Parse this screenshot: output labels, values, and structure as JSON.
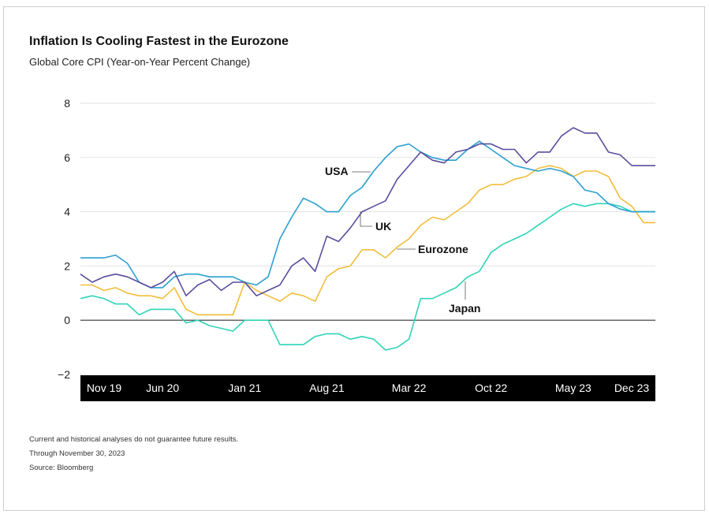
{
  "page": {
    "title": "Inflation Is Cooling Fastest in the Eurozone",
    "subtitle": "Global Core CPI (Year-on-Year Percent Change)",
    "notes": [
      "Current and historical analyses do not guarantee future results.",
      "Through November 30, 2023",
      "Source: Bloomberg"
    ]
  },
  "chart_data": {
    "type": "line",
    "title": "Inflation Is Cooling Fastest in the Eurozone",
    "subtitle": "Global Core CPI (Year-on-Year Percent Change)",
    "ylim": [
      -2,
      8
    ],
    "y_ticks": [
      "−2",
      "0",
      "2",
      "4",
      "6",
      "8"
    ],
    "y_tick_values": [
      -2,
      0,
      2,
      4,
      6,
      8
    ],
    "x_tick_labels": [
      "Nov 19",
      "Jun 20",
      "Jan 21",
      "Aug 21",
      "Mar 22",
      "Oct 22",
      "May 23",
      "Dec 23"
    ],
    "x_tick_dates": [
      "2019-11",
      "2020-06",
      "2021-01",
      "2021-08",
      "2022-03",
      "2022-10",
      "2023-05",
      "2023-12"
    ],
    "x": [
      "2019-11",
      "2019-12",
      "2020-01",
      "2020-02",
      "2020-03",
      "2020-04",
      "2020-05",
      "2020-06",
      "2020-07",
      "2020-08",
      "2020-09",
      "2020-10",
      "2020-11",
      "2020-12",
      "2021-01",
      "2021-02",
      "2021-03",
      "2021-04",
      "2021-05",
      "2021-06",
      "2021-07",
      "2021-08",
      "2021-09",
      "2021-10",
      "2021-11",
      "2021-12",
      "2022-01",
      "2022-02",
      "2022-03",
      "2022-04",
      "2022-05",
      "2022-06",
      "2022-07",
      "2022-08",
      "2022-09",
      "2022-10",
      "2022-11",
      "2022-12",
      "2023-01",
      "2023-02",
      "2023-03",
      "2023-04",
      "2023-05",
      "2023-06",
      "2023-07",
      "2023-08",
      "2023-09",
      "2023-10",
      "2023-11",
      "2023-12"
    ],
    "grid": true,
    "zero_line": true,
    "x_axis_band_color": "#000000",
    "series": [
      {
        "name": "USA",
        "color": "#2a9fd0",
        "label_at": "2021-06",
        "values": [
          2.3,
          2.3,
          2.3,
          2.4,
          2.1,
          1.4,
          1.2,
          1.2,
          1.6,
          1.7,
          1.7,
          1.6,
          1.6,
          1.6,
          1.4,
          1.3,
          1.6,
          3.0,
          3.8,
          4.5,
          4.3,
          4.0,
          4.0,
          4.6,
          4.9,
          5.5,
          6.0,
          6.4,
          6.5,
          6.2,
          6.0,
          5.9,
          5.9,
          6.3,
          6.6,
          6.3,
          6.0,
          5.7,
          5.6,
          5.5,
          5.6,
          5.5,
          5.3,
          4.8,
          4.7,
          4.3,
          4.1,
          4.0,
          4.0,
          4.0
        ]
      },
      {
        "name": "UK",
        "color": "#5b4c9e",
        "label_at": "2021-10",
        "values": [
          1.7,
          1.4,
          1.6,
          1.7,
          1.6,
          1.4,
          1.2,
          1.4,
          1.8,
          0.9,
          1.3,
          1.5,
          1.1,
          1.4,
          1.4,
          0.9,
          1.1,
          1.3,
          2.0,
          2.3,
          1.8,
          3.1,
          2.9,
          3.4,
          4.0,
          4.2,
          4.4,
          5.2,
          5.7,
          6.2,
          5.9,
          5.8,
          6.2,
          6.3,
          6.5,
          6.5,
          6.3,
          6.3,
          5.8,
          6.2,
          6.2,
          6.8,
          7.1,
          6.9,
          6.9,
          6.2,
          6.1,
          5.7,
          5.7,
          5.7
        ]
      },
      {
        "name": "Eurozone",
        "color": "#f2bd3a",
        "label_at": "2022-01",
        "values": [
          1.3,
          1.3,
          1.1,
          1.2,
          1.0,
          0.9,
          0.9,
          0.8,
          1.2,
          0.4,
          0.2,
          0.2,
          0.2,
          0.2,
          1.4,
          1.1,
          0.9,
          0.7,
          1.0,
          0.9,
          0.7,
          1.6,
          1.9,
          2.0,
          2.6,
          2.6,
          2.3,
          2.7,
          3.0,
          3.5,
          3.8,
          3.7,
          4.0,
          4.3,
          4.8,
          5.0,
          5.0,
          5.2,
          5.3,
          5.6,
          5.7,
          5.6,
          5.3,
          5.5,
          5.5,
          5.3,
          4.5,
          4.2,
          3.6,
          3.6
        ]
      },
      {
        "name": "Japan",
        "color": "#2fd3b8",
        "label_at": "2022-08",
        "values": [
          0.8,
          0.9,
          0.8,
          0.6,
          0.6,
          0.2,
          0.4,
          0.4,
          0.4,
          -0.1,
          0.0,
          -0.2,
          -0.3,
          -0.4,
          0.0,
          0.0,
          0.0,
          -0.9,
          -0.9,
          -0.9,
          -0.6,
          -0.5,
          -0.5,
          -0.7,
          -0.6,
          -0.7,
          -1.1,
          -1.0,
          -0.7,
          0.8,
          0.8,
          1.0,
          1.2,
          1.6,
          1.8,
          2.5,
          2.8,
          3.0,
          3.2,
          3.5,
          3.8,
          4.1,
          4.3,
          4.2,
          4.3,
          4.3,
          4.2,
          4.0,
          4.0,
          4.0
        ]
      }
    ]
  }
}
